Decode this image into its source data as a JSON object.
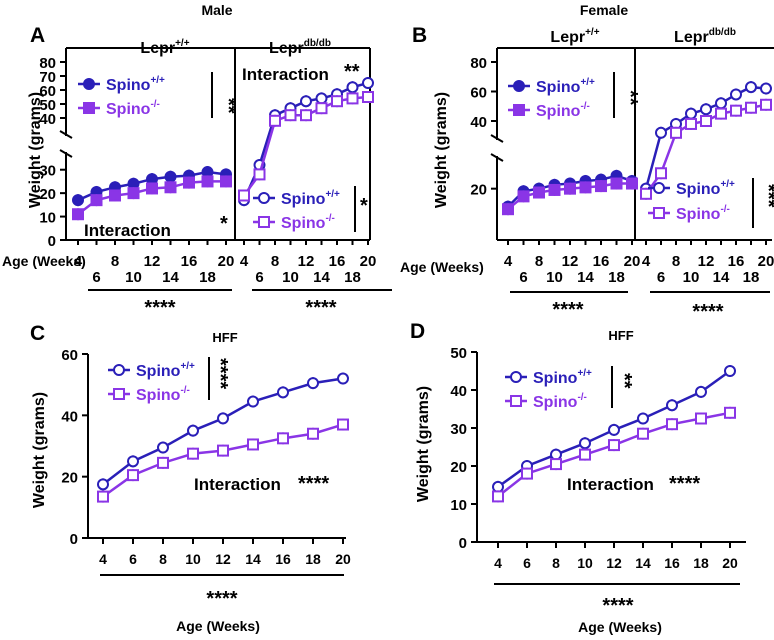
{
  "colors": {
    "wt": "#2a1fb8",
    "ko": "#8a35e6"
  },
  "chart_data": [
    {
      "panel": "A",
      "type": "line",
      "title": "Male",
      "ylabel": "Weight (grams)",
      "xlabel": "Age (Weeks)",
      "x": [
        4,
        6,
        8,
        10,
        12,
        14,
        16,
        18,
        20
      ],
      "xticks_top": [
        "4",
        "8",
        "12",
        "16",
        "20"
      ],
      "xticks_bottom": [
        "6",
        "10",
        "14",
        "18"
      ],
      "bottom_stars": "****",
      "subplots": [
        {
          "name": "Lepr+/+",
          "label_base": "Lepr",
          "label_sup": "+/+",
          "ylim_low": [
            0,
            35
          ],
          "ylim_high": [
            40,
            80
          ],
          "yticks_low": [
            "0",
            "10",
            "20",
            "30"
          ],
          "yticks_high": [
            "40",
            "50",
            "60",
            "70",
            "80"
          ],
          "legend": [
            {
              "label": "Spino",
              "sup": "+/+"
            },
            {
              "label": "Spino",
              "sup": "-/-"
            }
          ],
          "legend_stars": "**",
          "interaction_text": "Interaction",
          "interaction_stars": "*",
          "series": [
            {
              "name": "Spino+/+",
              "marker": "filled-circle",
              "values": [
                17,
                20.5,
                22.5,
                24,
                26,
                27,
                27.5,
                29,
                28
              ]
            },
            {
              "name": "Spino-/-",
              "marker": "filled-square",
              "values": [
                11,
                17,
                19,
                20,
                22,
                22.5,
                24.5,
                25,
                25
              ]
            }
          ]
        },
        {
          "name": "Leprdb/db",
          "label_base": "Lepr",
          "label_sup": "db/db",
          "legend": [
            {
              "label": "Spino",
              "sup": "+/+"
            },
            {
              "label": "Spino",
              "sup": "-/-"
            }
          ],
          "legend_stars": "*",
          "interaction_text": "Interaction",
          "interaction_stars": "**",
          "series": [
            {
              "name": "Spino+/+",
              "marker": "open-circle",
              "values": [
                17,
                32,
                42,
                47,
                52,
                54,
                57,
                62,
                65
              ]
            },
            {
              "name": "Spino-/-",
              "marker": "open-square",
              "values": [
                19,
                28,
                38,
                42,
                42,
                47,
                52,
                54,
                55
              ]
            }
          ]
        }
      ]
    },
    {
      "panel": "B",
      "type": "line",
      "title": "Female",
      "ylabel": "Weight (grams)",
      "xlabel": "Age (Weeks)",
      "x": [
        4,
        6,
        8,
        10,
        12,
        14,
        16,
        18,
        20
      ],
      "xticks_top": [
        "4",
        "8",
        "12",
        "16",
        "20"
      ],
      "xticks_bottom": [
        "6",
        "10",
        "14",
        "18"
      ],
      "bottom_stars": "****",
      "subplots": [
        {
          "name": "Lepr+/+",
          "label_base": "Lepr",
          "label_sup": "+/+",
          "ylim_low": [
            0,
            30
          ],
          "ylim_high": [
            30,
            80
          ],
          "yticks_low": [
            "20"
          ],
          "yticks_high": [
            "40",
            "60",
            "80"
          ],
          "legend": [
            {
              "label": "Spino",
              "sup": "+/+"
            },
            {
              "label": "Spino",
              "sup": "-/-"
            }
          ],
          "legend_stars": "**",
          "series": [
            {
              "name": "Spino+/+",
              "marker": "filled-circle",
              "values": [
                13,
                19,
                20,
                21.5,
                22,
                23,
                23.5,
                25,
                23
              ]
            },
            {
              "name": "Spino-/-",
              "marker": "filled-square",
              "values": [
                12,
                17,
                18.5,
                19.5,
                20,
                20.5,
                21,
                22,
                22
              ]
            }
          ]
        },
        {
          "name": "Leprdb/db",
          "label_base": "Lepr",
          "label_sup": "db/db",
          "legend": [
            {
              "label": "Spino",
              "sup": "+/+"
            },
            {
              "label": "Spino",
              "sup": "-/-"
            }
          ],
          "legend_stars": "***",
          "series": [
            {
              "name": "Spino+/+",
              "marker": "open-circle",
              "values": [
                20,
                32,
                38,
                45,
                48,
                52,
                58,
                63,
                62
              ]
            },
            {
              "name": "Spino-/-",
              "marker": "open-square",
              "values": [
                18,
                26,
                32,
                38,
                40,
                45,
                47,
                49,
                51
              ]
            }
          ]
        }
      ]
    },
    {
      "panel": "C",
      "type": "line",
      "title": "HFF",
      "ylabel": "Weight (grams)",
      "xlabel": "Age (Weeks)",
      "x": [
        4,
        6,
        8,
        10,
        12,
        14,
        16,
        18,
        20
      ],
      "xticks": [
        "4",
        "6",
        "8",
        "10",
        "12",
        "14",
        "16",
        "18",
        "20"
      ],
      "ylim": [
        0,
        60
      ],
      "yticks": [
        "0",
        "20",
        "40",
        "60"
      ],
      "legend": [
        {
          "label": "Spino",
          "sup": "+/+"
        },
        {
          "label": "Spino",
          "sup": "-/-"
        }
      ],
      "legend_stars": "****",
      "interaction_text": "Interaction",
      "interaction_stars": "****",
      "bottom_stars": "****",
      "series": [
        {
          "name": "Spino+/+",
          "marker": "open-circle",
          "values": [
            17.5,
            25,
            29.5,
            35,
            39,
            44.5,
            47.5,
            50.5,
            52
          ]
        },
        {
          "name": "Spino-/-",
          "marker": "open-square",
          "values": [
            13.5,
            20.5,
            24.5,
            27.5,
            28.5,
            30.5,
            32.5,
            34,
            37
          ]
        }
      ]
    },
    {
      "panel": "D",
      "type": "line",
      "title": "HFF",
      "ylabel": "Weight (grams)",
      "xlabel": "Age (Weeks)",
      "x": [
        4,
        6,
        8,
        10,
        12,
        14,
        16,
        18,
        20
      ],
      "xticks": [
        "4",
        "6",
        "8",
        "10",
        "12",
        "14",
        "16",
        "18",
        "20"
      ],
      "ylim": [
        0,
        50
      ],
      "yticks": [
        "0",
        "10",
        "20",
        "30",
        "40",
        "50"
      ],
      "legend": [
        {
          "label": "Spino",
          "sup": "+/+"
        },
        {
          "label": "Spino",
          "sup": "-/-"
        }
      ],
      "legend_stars": "**",
      "interaction_text": "Interaction",
      "interaction_stars": "****",
      "bottom_stars": "****",
      "series": [
        {
          "name": "Spino+/+",
          "marker": "open-circle",
          "values": [
            14.5,
            20,
            23,
            26,
            29.5,
            32.5,
            36,
            39.5,
            45
          ]
        },
        {
          "name": "Spino-/-",
          "marker": "open-square",
          "values": [
            12,
            18,
            20.5,
            23,
            25.5,
            28.5,
            31,
            32.5,
            34
          ]
        }
      ]
    }
  ]
}
